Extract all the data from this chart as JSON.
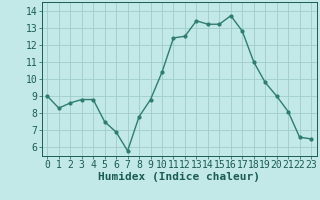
{
  "x": [
    0,
    1,
    2,
    3,
    4,
    5,
    6,
    7,
    8,
    9,
    10,
    11,
    12,
    13,
    14,
    15,
    16,
    17,
    18,
    19,
    20,
    21,
    22,
    23
  ],
  "y": [
    9.0,
    8.3,
    8.6,
    8.8,
    8.8,
    7.5,
    6.9,
    5.8,
    7.8,
    8.8,
    10.4,
    12.4,
    12.5,
    13.4,
    13.2,
    13.2,
    13.7,
    12.8,
    11.0,
    9.8,
    9.0,
    8.1,
    6.6,
    6.5
  ],
  "line_color": "#2e7d6e",
  "marker": "o",
  "marker_size": 2,
  "line_width": 1.0,
  "bg_color": "#c2e8e8",
  "grid_color": "#a0cccc",
  "tick_color": "#1a5c52",
  "label_color": "#1a5c52",
  "xlabel": "Humidex (Indice chaleur)",
  "xlim": [
    -0.5,
    23.5
  ],
  "ylim": [
    5.5,
    14.5
  ],
  "yticks": [
    6,
    7,
    8,
    9,
    10,
    11,
    12,
    13,
    14
  ],
  "xticks": [
    0,
    1,
    2,
    3,
    4,
    5,
    6,
    7,
    8,
    9,
    10,
    11,
    12,
    13,
    14,
    15,
    16,
    17,
    18,
    19,
    20,
    21,
    22,
    23
  ],
  "xlabel_fontsize": 8,
  "tick_fontsize": 7
}
